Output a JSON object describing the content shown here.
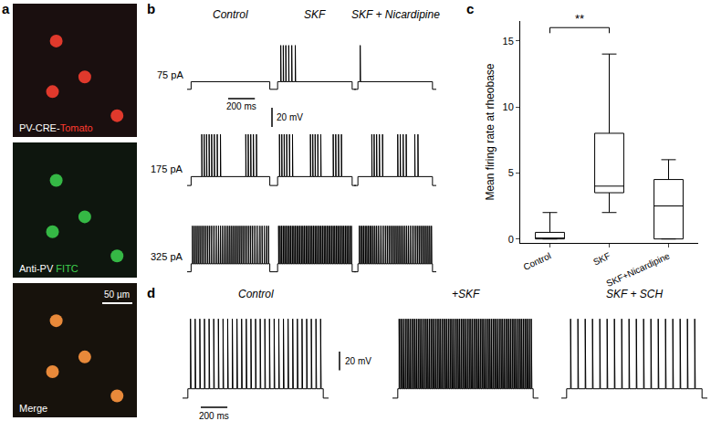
{
  "panel_labels": [
    "a",
    "b",
    "c",
    "d"
  ],
  "panel_a": {
    "images": [
      {
        "label_parts": [
          {
            "text": "PV-CRE-",
            "color": "#ffffff"
          },
          {
            "text": "Tomato",
            "color": "#ff3b2f"
          }
        ],
        "color": "#e0392c"
      },
      {
        "label_parts": [
          {
            "text": "Anti-PV ",
            "color": "#ffffff"
          },
          {
            "text": "FITC",
            "color": "#3fd24f"
          }
        ],
        "color": "#35b845"
      },
      {
        "label_parts": [
          {
            "text": "Merge",
            "color": "#ffffff"
          }
        ],
        "color": "#e8893a"
      }
    ],
    "scale_bar": "50 µm"
  },
  "panel_b": {
    "conditions": [
      "Control",
      "SKF",
      "SKF + Nicardipine"
    ],
    "xlim": [
      0,
      650
    ],
    "ylim": [
      -74,
      -10
    ],
    "step_ms": [
      30,
      620
    ],
    "baseline_mV": -70,
    "plateau_mV": -62,
    "peak_mV": -24,
    "rows": [
      {
        "current": "75 pA",
        "spikes_ms": [
          [],
          [
            55,
            75,
            95,
            118,
            142,
            170
          ],
          [
            48
          ]
        ]
      },
      {
        "current": "175 pA",
        "spikes_ms": [
          [
            110,
            128,
            146,
            165,
            184,
            204,
            226,
            250,
            440,
            458,
            477,
            497,
            520
          ],
          [
            45,
            63,
            82,
            102,
            124,
            148,
            290,
            308,
            327,
            348,
            372,
            470,
            490,
            512,
            535
          ],
          [
            140,
            158,
            178,
            200,
            225,
            345,
            365,
            388,
            412,
            480,
            505
          ]
        ]
      },
      {
        "current": "325 pA",
        "spikes_ms": [
          [
            40,
            54,
            68,
            82,
            96,
            110,
            124,
            138,
            152,
            166,
            180,
            194,
            208,
            222,
            236,
            250,
            264,
            278,
            292,
            306,
            320,
            334,
            348,
            362,
            376,
            390,
            404,
            418,
            432,
            446,
            460,
            474,
            488,
            502,
            516,
            530,
            546,
            562,
            578,
            594,
            610
          ],
          [
            38,
            50,
            62,
            74,
            86,
            98,
            110,
            122,
            134,
            146,
            158,
            170,
            182,
            194,
            206,
            218,
            230,
            242,
            254,
            266,
            278,
            290,
            302,
            314,
            326,
            338,
            350,
            362,
            374,
            386,
            398,
            410,
            422,
            434,
            446,
            458,
            470,
            482,
            494,
            506,
            518,
            530,
            542,
            554,
            566,
            578,
            590,
            602,
            614
          ],
          [
            40,
            52,
            64,
            76,
            88,
            100,
            112,
            124,
            136,
            150,
            164,
            178,
            192,
            206,
            220,
            234,
            248,
            262,
            276,
            290,
            304,
            318,
            332,
            346,
            360,
            374,
            388,
            402,
            416,
            430,
            444,
            458,
            472,
            486,
            500,
            514,
            528,
            542,
            556,
            570,
            584,
            598,
            612
          ]
        ]
      }
    ],
    "scale_bars": [
      {
        "value": 200,
        "label": "200 ms"
      },
      {
        "value": 20,
        "label": "20 mV"
      }
    ],
    "tick_labels": false
  },
  "chart_data": {
    "type": "box",
    "categories": [
      "Control",
      "SKF",
      "SKF+Nicardipine"
    ],
    "min": [
      0,
      2,
      0
    ],
    "q1": [
      0,
      3.5,
      0
    ],
    "median": [
      0,
      4,
      2.5
    ],
    "q3": [
      0.5,
      8,
      4.5
    ],
    "max": [
      2,
      14,
      6
    ],
    "y_label": "Mean firing rate at rheobase",
    "ylim": [
      -0.3,
      16.5
    ],
    "yticks": [
      0,
      5,
      10,
      15
    ],
    "grid": false,
    "color": "#000000",
    "significance": {
      "text": "**",
      "between": [
        "Control",
        "SKF"
      ],
      "y": 16
    }
  },
  "panel_d": {
    "conditions": [
      "Control",
      "+SKF",
      "SKF + SCH"
    ],
    "xlim": [
      0,
      1100
    ],
    "ylim": [
      -74,
      24
    ],
    "step_ms": [
      40,
      1060
    ],
    "baseline_mV": -70,
    "plateau_mV": -60,
    "peak_mV": 15,
    "spikes_ms": [
      [
        60,
        95,
        130,
        165,
        200,
        235,
        270,
        305,
        340,
        375,
        410,
        445,
        480,
        515,
        550,
        585,
        620,
        655,
        690,
        725,
        760,
        795,
        830,
        865,
        900,
        935,
        970,
        1005,
        1040
      ],
      [
        50,
        62,
        74,
        86,
        98,
        110,
        122,
        134,
        146,
        158,
        170,
        182,
        194,
        206,
        218,
        230,
        242,
        254,
        266,
        278,
        290,
        302,
        314,
        326,
        338,
        350,
        362,
        374,
        386,
        398,
        410,
        422,
        434,
        446,
        458,
        470,
        482,
        494,
        506,
        518,
        530,
        542,
        554,
        566,
        578,
        590,
        602,
        614,
        626,
        638,
        650,
        662,
        674,
        686,
        698,
        710,
        722,
        734,
        746,
        758,
        770,
        782,
        794,
        806,
        818,
        830,
        842,
        854,
        866,
        878,
        890,
        902,
        914,
        926,
        938,
        950,
        962,
        974,
        986,
        998,
        1010,
        1022,
        1034,
        1046
      ],
      [
        70,
        125,
        180,
        235,
        290,
        345,
        400,
        455,
        510,
        565,
        620,
        675,
        730,
        785,
        840,
        895,
        950,
        1005
      ]
    ],
    "scale_bars": [
      {
        "value": 20,
        "label": "20 mV"
      },
      {
        "value": 200,
        "label": "200 ms"
      }
    ],
    "tick_labels": false
  }
}
